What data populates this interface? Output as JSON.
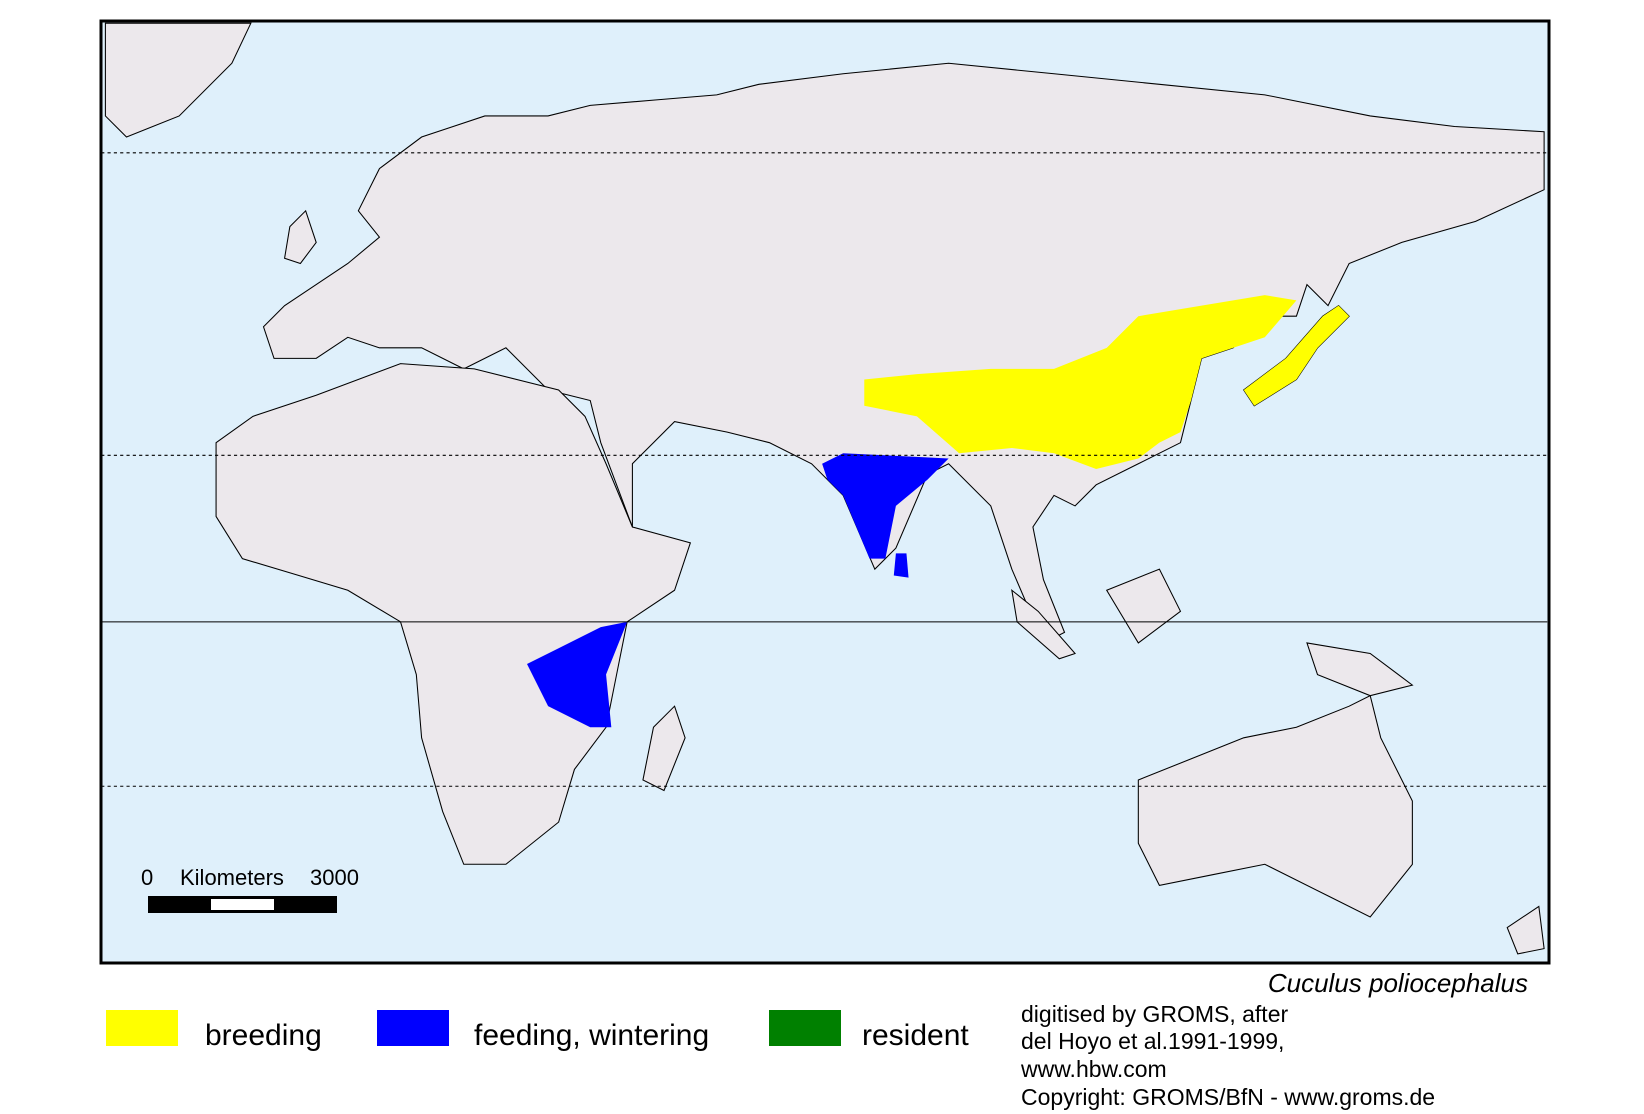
{
  "map": {
    "species": "Cuculus poliocephalus",
    "legend": [
      {
        "label": "breeding",
        "color": "#ffff00"
      },
      {
        "label": "feeding, wintering",
        "color": "#0000ff"
      },
      {
        "label": "resident",
        "color": "#008000"
      }
    ],
    "scale": {
      "start": "0",
      "unit": "Kilometers",
      "end": "3000"
    },
    "credits": [
      "digitised by GROMS, after",
      "del Hoyo et al.1991-1999,",
      "www.hbw.com",
      "Copyright: GROMS/BfN - www.groms.de"
    ]
  }
}
